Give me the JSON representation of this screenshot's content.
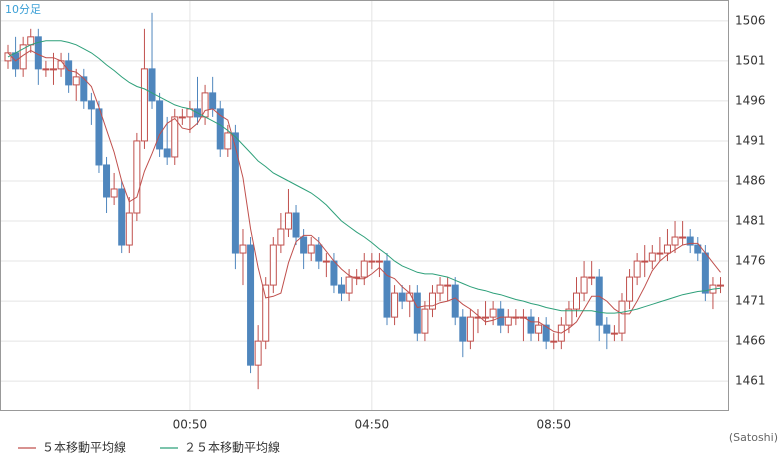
{
  "chart_data": {
    "type": "candlestick",
    "label": "10分足",
    "source": "(Satoshi)",
    "categories": [
      null,
      null,
      null,
      null,
      null,
      null,
      null,
      null,
      null,
      null,
      null,
      null,
      null,
      null,
      null,
      null,
      null,
      null,
      null,
      null,
      null,
      null,
      null,
      null,
      "00:50",
      null,
      null,
      null,
      null,
      null,
      null,
      null,
      null,
      null,
      null,
      null,
      null,
      null,
      null,
      null,
      null,
      null,
      null,
      null,
      null,
      null,
      null,
      null,
      "04:50",
      null,
      null,
      null,
      null,
      null,
      null,
      null,
      null,
      null,
      null,
      null,
      null,
      null,
      null,
      null,
      null,
      null,
      null,
      null,
      null,
      null,
      null,
      null,
      "08:50",
      null,
      null,
      null,
      null,
      null,
      null,
      null,
      null,
      null,
      null,
      null,
      null,
      null,
      null,
      null,
      null,
      null,
      null,
      null,
      null,
      null,
      null
    ],
    "open": [
      1501,
      1502,
      1500,
      1503,
      1504,
      1500,
      1500,
      1500,
      1501,
      1498,
      1499,
      1496,
      1495,
      1488,
      1484,
      1485,
      1478,
      1482,
      1491,
      1500,
      1496,
      1490,
      1489,
      1494,
      1494,
      1495,
      1494,
      1497,
      1495,
      1490,
      1492,
      1477,
      1478,
      1463,
      1466,
      1473,
      1478,
      1480,
      1482,
      1479,
      1477,
      1478,
      1476,
      1476,
      1473,
      1472,
      1474,
      1474,
      1476,
      1476,
      1476,
      1469,
      1472,
      1471,
      1472,
      1467,
      1470,
      1472,
      1473,
      1473,
      1469,
      1466,
      1469,
      1469,
      1469,
      1470,
      1468,
      1469,
      1469,
      1469,
      1467,
      1468,
      1466,
      1466,
      1468,
      1470,
      1472,
      1474,
      1474,
      1468,
      1467,
      1467,
      1471,
      1474,
      1476,
      1476,
      1477,
      1477,
      1478,
      1479,
      1479,
      1478,
      1477,
      1472,
      1473
    ],
    "high": [
      1503,
      1504,
      1504,
      1505,
      1505,
      1501,
      1502,
      1502,
      1502,
      1500,
      1500,
      1497,
      1496,
      1489,
      1487,
      1486,
      1484,
      1492,
      1505,
      1507,
      1497,
      1494,
      1495,
      1495,
      1496,
      1499,
      1498,
      1499,
      1496,
      1493,
      1493,
      1480,
      1479,
      1468,
      1474,
      1479,
      1482,
      1485,
      1483,
      1480,
      1479,
      1479,
      1477,
      1477,
      1474,
      1475,
      1475,
      1477,
      1477,
      1477,
      1477,
      1473,
      1473,
      1473,
      1473,
      1471,
      1473,
      1474,
      1474,
      1474,
      1470,
      1470,
      1470,
      1471,
      1471,
      1471,
      1470,
      1470,
      1470,
      1470,
      1469,
      1469,
      1467,
      1469,
      1471,
      1474,
      1476,
      1476,
      1475,
      1469,
      1468,
      1472,
      1475,
      1477,
      1478,
      1478,
      1479,
      1480,
      1481,
      1481,
      1480,
      1479,
      1478,
      1474,
      1474
    ],
    "low": [
      1500,
      1499,
      1499,
      1502,
      1498,
      1499,
      1498,
      1499,
      1497,
      1496,
      1495,
      1493,
      1487,
      1482,
      1483,
      1477,
      1477,
      1481,
      1490,
      1495,
      1489,
      1488,
      1488,
      1493,
      1492,
      1493,
      1493,
      1494,
      1489,
      1489,
      1475,
      1473,
      1462,
      1460,
      1465,
      1472,
      1477,
      1479,
      1478,
      1475,
      1476,
      1475,
      1474,
      1472,
      1471,
      1471,
      1473,
      1473,
      1475,
      1474,
      1468,
      1468,
      1470,
      1469,
      1466,
      1466,
      1469,
      1471,
      1471,
      1468,
      1464,
      1465,
      1467,
      1468,
      1468,
      1467,
      1467,
      1468,
      1466,
      1466,
      1466,
      1465,
      1465,
      1465,
      1467,
      1469,
      1471,
      1473,
      1466,
      1465,
      1466,
      1466,
      1470,
      1473,
      1474,
      1475,
      1476,
      1476,
      1477,
      1478,
      1477,
      1476,
      1471,
      1470,
      1472
    ],
    "close": [
      1502,
      1500,
      1503,
      1504,
      1500,
      1500,
      1500,
      1501,
      1498,
      1499,
      1496,
      1495,
      1488,
      1484,
      1485,
      1478,
      1482,
      1491,
      1500,
      1496,
      1490,
      1489,
      1494,
      1494,
      1495,
      1494,
      1497,
      1495,
      1490,
      1492,
      1477,
      1478,
      1463,
      1466,
      1473,
      1478,
      1480,
      1482,
      1479,
      1477,
      1478,
      1476,
      1476,
      1473,
      1472,
      1474,
      1474,
      1476,
      1476,
      1476,
      1469,
      1472,
      1471,
      1472,
      1467,
      1470,
      1472,
      1473,
      1473,
      1469,
      1466,
      1469,
      1469,
      1469,
      1470,
      1468,
      1469,
      1469,
      1469,
      1467,
      1468,
      1466,
      1466,
      1468,
      1470,
      1472,
      1474,
      1474,
      1468,
      1467,
      1467,
      1471,
      1474,
      1476,
      1476,
      1477,
      1477,
      1478,
      1479,
      1479,
      1478,
      1477,
      1472,
      1473,
      1473
    ],
    "up_color": "#c0504d",
    "down_color": "#4f86bd",
    "series": [
      {
        "name": "５本移動平均線",
        "color": "#c0504d",
        "values": [
          1502,
          1501,
          1501.7,
          1502.3,
          1501.8,
          1501.4,
          1501.4,
          1501,
          1499.8,
          1499.6,
          1498.8,
          1497.8,
          1495.2,
          1492.4,
          1489.6,
          1486,
          1483.4,
          1484,
          1487.2,
          1489.4,
          1491.8,
          1493.2,
          1493.8,
          1492.6,
          1492.4,
          1493.2,
          1494.8,
          1495,
          1494.2,
          1493.6,
          1490.2,
          1486.4,
          1480,
          1475.2,
          1471.4,
          1471.6,
          1472,
          1475.8,
          1478.4,
          1479.2,
          1479.2,
          1478.4,
          1477.2,
          1476,
          1475,
          1474.2,
          1473.8,
          1473.8,
          1474.4,
          1475.2,
          1474.2,
          1473.8,
          1472.8,
          1472,
          1470.2,
          1470.4,
          1470.4,
          1470.8,
          1471,
          1471.4,
          1470.6,
          1470,
          1469.2,
          1468.4,
          1468.6,
          1469,
          1469,
          1469,
          1469,
          1468.4,
          1468.4,
          1467.8,
          1467.2,
          1467,
          1467.6,
          1468.4,
          1470,
          1471.6,
          1471.6,
          1471,
          1470,
          1469.4,
          1469.4,
          1471,
          1472.8,
          1474.8,
          1476,
          1476.8,
          1477.4,
          1478,
          1478.2,
          1478.2,
          1477,
          1475.8,
          1474.6
        ]
      },
      {
        "name": "２５本移動平均線",
        "color": "#2ea07a",
        "values": [
          1501.5,
          1502,
          1502.5,
          1503,
          1503.3,
          1503.5,
          1503.5,
          1503.5,
          1503.3,
          1503,
          1502.5,
          1502,
          1501.3,
          1500.5,
          1499.8,
          1499,
          1498.3,
          1497.8,
          1497.5,
          1497,
          1496.5,
          1496,
          1495.5,
          1495.2,
          1495,
          1494.5,
          1494,
          1493.5,
          1493,
          1492.3,
          1491.5,
          1490.5,
          1489.5,
          1488.5,
          1487.8,
          1487,
          1486.5,
          1486,
          1485.5,
          1485,
          1484.5,
          1483.8,
          1483,
          1482,
          1481,
          1480.3,
          1479.6,
          1479,
          1478.3,
          1477.5,
          1476.8,
          1476,
          1475.4,
          1475,
          1474.6,
          1474.4,
          1474.4,
          1474.2,
          1474,
          1473.6,
          1473.2,
          1472.8,
          1472.5,
          1472.3,
          1472,
          1471.8,
          1471.5,
          1471.2,
          1471,
          1470.7,
          1470.5,
          1470.2,
          1470,
          1469.8,
          1469.8,
          1469.8,
          1469.8,
          1469.8,
          1469.6,
          1469.5,
          1469.5,
          1469.6,
          1469.8,
          1470,
          1470.3,
          1470.6,
          1470.9,
          1471.2,
          1471.5,
          1471.8,
          1472,
          1472.2,
          1472.3,
          1472.5,
          1472.6
        ]
      }
    ],
    "ylim": [
      1457.4,
      1508.6
    ],
    "yticks": [
      1461,
      1466,
      1471,
      1476,
      1481,
      1486,
      1491,
      1496,
      1501,
      1506
    ],
    "grid": true
  }
}
